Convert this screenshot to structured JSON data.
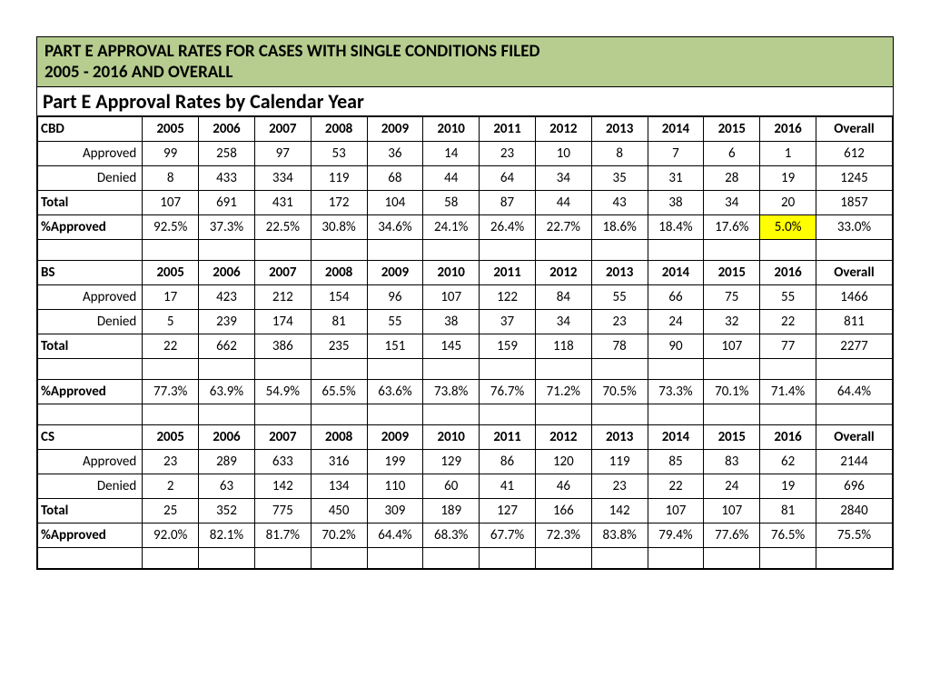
{
  "title_line1": "PART E APPROVAL RATES FOR CASES WITH SINGLE CONDITIONS FILED",
  "title_line2": "2005 - 2016 AND OVERALL",
  "subtitle": "Part E Approval Rates by Calendar Year",
  "years": [
    "2005",
    "2006",
    "2007",
    "2008",
    "2009",
    "2010",
    "2011",
    "2012",
    "2013",
    "2014",
    "2015",
    "2016",
    "Overall"
  ],
  "row_labels": {
    "approved": "Approved",
    "denied": "Denied",
    "total": "Total",
    "pct": "%Approved"
  },
  "sections": {
    "cbd": {
      "name": "CBD",
      "approved": [
        "99",
        "258",
        "97",
        "53",
        "36",
        "14",
        "23",
        "10",
        "8",
        "7",
        "6",
        "1",
        "612"
      ],
      "denied": [
        "8",
        "433",
        "334",
        "119",
        "68",
        "44",
        "64",
        "34",
        "35",
        "31",
        "28",
        "19",
        "1245"
      ],
      "total": [
        "107",
        "691",
        "431",
        "172",
        "104",
        "58",
        "87",
        "44",
        "43",
        "38",
        "34",
        "20",
        "1857"
      ],
      "pct": [
        "92.5%",
        "37.3%",
        "22.5%",
        "30.8%",
        "34.6%",
        "24.1%",
        "26.4%",
        "22.7%",
        "18.6%",
        "18.4%",
        "17.6%",
        "5.0%",
        "33.0%"
      ],
      "highlight_pct_index": 11
    },
    "bs": {
      "name": "BS",
      "approved": [
        "17",
        "423",
        "212",
        "154",
        "96",
        "107",
        "122",
        "84",
        "55",
        "66",
        "75",
        "55",
        "1466"
      ],
      "denied": [
        "5",
        "239",
        "174",
        "81",
        "55",
        "38",
        "37",
        "34",
        "23",
        "24",
        "32",
        "22",
        "811"
      ],
      "total": [
        "22",
        "662",
        "386",
        "235",
        "151",
        "145",
        "159",
        "118",
        "78",
        "90",
        "107",
        "77",
        "2277"
      ],
      "pct": [
        "77.3%",
        "63.9%",
        "54.9%",
        "65.5%",
        "63.6%",
        "73.8%",
        "76.7%",
        "71.2%",
        "70.5%",
        "73.3%",
        "70.1%",
        "71.4%",
        "64.4%"
      ],
      "highlight_pct_index": -1
    },
    "cs": {
      "name": "CS",
      "approved": [
        "23",
        "289",
        "633",
        "316",
        "199",
        "129",
        "86",
        "120",
        "119",
        "85",
        "83",
        "62",
        "2144"
      ],
      "denied": [
        "2",
        "63",
        "142",
        "134",
        "110",
        "60",
        "41",
        "46",
        "23",
        "22",
        "24",
        "19",
        "696"
      ],
      "total": [
        "25",
        "352",
        "775",
        "450",
        "309",
        "189",
        "127",
        "166",
        "142",
        "107",
        "107",
        "81",
        "2840"
      ],
      "pct": [
        "92.0%",
        "82.1%",
        "81.7%",
        "70.2%",
        "64.4%",
        "68.3%",
        "67.7%",
        "72.3%",
        "83.8%",
        "79.4%",
        "77.6%",
        "76.5%",
        "75.5%"
      ],
      "highlight_pct_index": -1
    }
  },
  "section_order": [
    "cbd",
    "bs",
    "cs"
  ]
}
